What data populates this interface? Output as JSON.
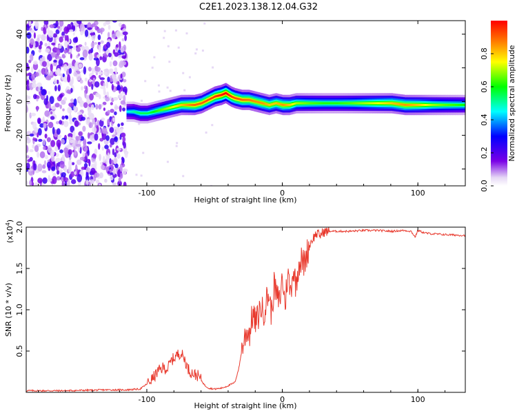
{
  "title": "C2E1.2023.138.12.04.G32",
  "chart_data": [
    {
      "type": "heatmap",
      "xlabel": "Height of straight line (km)",
      "ylabel": "Frequency (Hz)",
      "xlim": [
        -189,
        135
      ],
      "ylim": [
        -50,
        48
      ],
      "x_ticks": [
        -100,
        0,
        100
      ],
      "x_tick_labels": [
        "-100",
        "0",
        "100"
      ],
      "y_ticks": [
        -40,
        -20,
        0,
        20,
        40
      ],
      "y_tick_labels": [
        "-40",
        "-20",
        "0",
        "20",
        "40"
      ],
      "colorbar": {
        "label": "Normalized spectral amplitude",
        "range": [
          0,
          1
        ],
        "ticks": [
          0,
          0.2,
          0.4,
          0.6,
          0.8
        ],
        "tick_labels": [
          "0.0",
          "0.2",
          "0.4",
          "0.6",
          "0.8"
        ],
        "colormap": [
          "#ffffff",
          "#e6d8f5",
          "#7a00e6",
          "#0000ff",
          "#00ffff",
          "#00ff00",
          "#ffff00",
          "#ff8000",
          "#ff0000"
        ]
      },
      "noise_region_x": [
        -189,
        -115
      ],
      "ridge": {
        "x": [
          -115,
          -110,
          -105,
          -100,
          -95,
          -90,
          -85,
          -80,
          -75,
          -70,
          -65,
          -60,
          -55,
          -50,
          -45,
          -42,
          -38,
          -35,
          -30,
          -25,
          -20,
          -15,
          -10,
          -5,
          0,
          5,
          10,
          20,
          30,
          40,
          50,
          60,
          70,
          80,
          90,
          100,
          110,
          120,
          135
        ],
        "frequency": [
          -6,
          -6,
          -7,
          -7,
          -6,
          -5,
          -4,
          -3,
          -2,
          -2,
          -2,
          -1,
          1,
          3,
          4,
          5,
          3,
          2,
          1,
          1,
          0,
          -1,
          -2,
          -1,
          -2,
          -2,
          -1,
          -1,
          -1,
          -1,
          -1,
          -1,
          -1,
          -1,
          -2,
          -2,
          -2,
          -2,
          -2
        ],
        "peak_amplitude": [
          0.45,
          0.5,
          0.55,
          0.55,
          0.6,
          0.65,
          0.7,
          0.75,
          0.8,
          0.85,
          0.9,
          0.9,
          0.92,
          0.95,
          0.98,
          1.0,
          0.95,
          0.92,
          0.9,
          0.88,
          0.85,
          0.85,
          0.8,
          0.8,
          0.85,
          0.8,
          0.7,
          0.65,
          0.62,
          0.62,
          0.65,
          0.7,
          0.75,
          0.8,
          0.85,
          0.8,
          0.7,
          0.65,
          0.6
        ]
      }
    },
    {
      "type": "line",
      "xlabel": "Height of straight line (km)",
      "ylabel": "SNR (10 * v/v)",
      "y_multiplier": "(x10",
      "y_multiplier_exp": "4",
      "y_multiplier_close": ")",
      "xlim": [
        -189,
        135
      ],
      "ylim": [
        0,
        2.0
      ],
      "x_ticks": [
        -100,
        0,
        100
      ],
      "x_tick_labels": [
        "-100",
        "0",
        "100"
      ],
      "y_ticks": [
        0.5,
        1.0,
        1.5,
        2.0
      ],
      "y_tick_labels": [
        "0.5",
        "1.0",
        "1.5",
        "2.0"
      ],
      "color": "#e8382c",
      "series": [
        {
          "x": [
            -189,
            -160,
            -130,
            -115,
            -105,
            -100,
            -95,
            -92,
            -88,
            -85,
            -82,
            -78,
            -75,
            -72,
            -70,
            -68,
            -65,
            -62,
            -60,
            -57,
            -54,
            -50,
            -45,
            -40,
            -35,
            -32,
            -30,
            -28,
            -26,
            -24,
            -22,
            -20,
            -18,
            -16,
            -14,
            -12,
            -10,
            -8,
            -6,
            -4,
            -2,
            0,
            2,
            4,
            6,
            8,
            10,
            12,
            14,
            16,
            18,
            20,
            22,
            25,
            28,
            30,
            35,
            40,
            50,
            60,
            70,
            80,
            90,
            95,
            98,
            100,
            105,
            110,
            120,
            135
          ],
          "values": [
            0.02,
            0.02,
            0.03,
            0.03,
            0.04,
            0.1,
            0.18,
            0.25,
            0.3,
            0.28,
            0.38,
            0.45,
            0.48,
            0.4,
            0.3,
            0.25,
            0.22,
            0.2,
            0.15,
            0.08,
            0.05,
            0.04,
            0.05,
            0.08,
            0.12,
            0.3,
            0.5,
            0.65,
            0.75,
            0.72,
            0.95,
            0.85,
            0.9,
            1.05,
            0.95,
            1.1,
            1.2,
            0.95,
            1.3,
            1.15,
            1.1,
            1.4,
            1.05,
            1.45,
            1.2,
            1.5,
            1.3,
            1.55,
            1.6,
            1.55,
            1.68,
            1.78,
            1.85,
            1.92,
            1.9,
            1.94,
            1.95,
            1.95,
            1.95,
            1.96,
            1.96,
            1.95,
            1.96,
            1.95,
            1.88,
            1.96,
            1.93,
            1.92,
            1.91,
            1.9
          ]
        }
      ]
    }
  ]
}
